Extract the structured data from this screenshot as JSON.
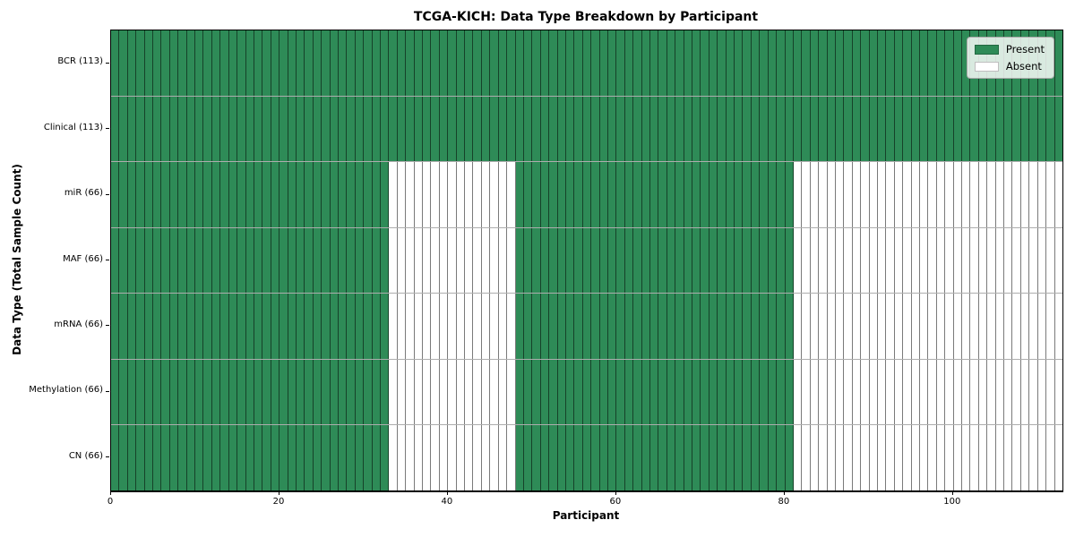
{
  "chart_data": {
    "type": "heatmap",
    "title": "TCGA-KICH: Data Type Breakdown by Participant",
    "xlabel": "Participant",
    "ylabel": "Data Type (Total Sample Count)",
    "n_participants": 113,
    "x_ticks": [
      0,
      20,
      40,
      60,
      80,
      100
    ],
    "xlim": [
      0,
      113
    ],
    "grid": false,
    "legend_position": "upper right",
    "colors": {
      "present": "#2e8b57",
      "absent": "#ffffff"
    },
    "legend": [
      {
        "key": "present",
        "label": "Present"
      },
      {
        "key": "absent",
        "label": "Absent"
      }
    ],
    "rows": [
      {
        "label": "BCR (113)",
        "present_total": 113,
        "segments": [
          {
            "state": "present",
            "count": 113
          }
        ]
      },
      {
        "label": "Clinical (113)",
        "present_total": 113,
        "segments": [
          {
            "state": "present",
            "count": 113
          }
        ]
      },
      {
        "label": "miR (66)",
        "present_total": 66,
        "segments": [
          {
            "state": "present",
            "count": 33
          },
          {
            "state": "absent",
            "count": 15
          },
          {
            "state": "present",
            "count": 33
          },
          {
            "state": "absent",
            "count": 32
          }
        ]
      },
      {
        "label": "MAF (66)",
        "present_total": 66,
        "segments": [
          {
            "state": "present",
            "count": 33
          },
          {
            "state": "absent",
            "count": 15
          },
          {
            "state": "present",
            "count": 33
          },
          {
            "state": "absent",
            "count": 32
          }
        ]
      },
      {
        "label": "mRNA (66)",
        "present_total": 66,
        "segments": [
          {
            "state": "present",
            "count": 33
          },
          {
            "state": "absent",
            "count": 15
          },
          {
            "state": "present",
            "count": 33
          },
          {
            "state": "absent",
            "count": 32
          }
        ]
      },
      {
        "label": "Methylation (66)",
        "present_total": 66,
        "segments": [
          {
            "state": "present",
            "count": 33
          },
          {
            "state": "absent",
            "count": 15
          },
          {
            "state": "present",
            "count": 33
          },
          {
            "state": "absent",
            "count": 32
          }
        ]
      },
      {
        "label": "CN (66)",
        "present_total": 66,
        "segments": [
          {
            "state": "present",
            "count": 33
          },
          {
            "state": "absent",
            "count": 15
          },
          {
            "state": "present",
            "count": 33
          },
          {
            "state": "absent",
            "count": 32
          }
        ]
      }
    ]
  }
}
